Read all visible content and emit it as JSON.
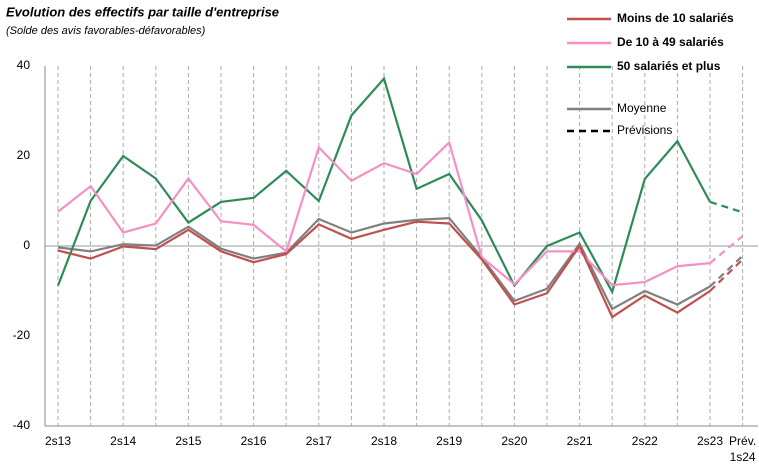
{
  "chart_data": {
    "type": "line",
    "title": "Evolution des effectifs par taille d'entreprise",
    "subtitle": "(Solde des avis favorables-défavorables)",
    "categories": [
      "2s13",
      null,
      "2s14",
      null,
      "2s15",
      null,
      "2s16",
      null,
      "2s17",
      null,
      "2s18",
      null,
      "2s19",
      null,
      "2s20",
      null,
      "2s21",
      null,
      "2s22",
      null,
      "2s23",
      "Prév.\n1s24"
    ],
    "series": [
      {
        "name": "Moins de 10 salariés",
        "color": "#c0504d",
        "values": [
          -1,
          -2.8,
          -0.1,
          -0.7,
          3.6,
          -1.2,
          -3.6,
          -1.8,
          4.8,
          1.6,
          3.6,
          5.4,
          5,
          -3,
          -13,
          -10.5,
          0,
          -15.8,
          -11,
          -14.8,
          -10,
          -3
        ]
      },
      {
        "name": "De 10 à 49 salariés",
        "color": "#f590c4",
        "values": [
          7.6,
          13.3,
          3,
          5,
          15,
          5.5,
          4.7,
          -1.2,
          21.9,
          14.5,
          18.4,
          16,
          23,
          -2.5,
          -8.5,
          -1.2,
          -1.2,
          -8.7,
          -8,
          -4.5,
          -3.8,
          2.2
        ]
      },
      {
        "name": "50 salariés et plus",
        "color": "#2e8b57",
        "values": [
          -8.8,
          10,
          20,
          15,
          5.2,
          9.8,
          10.7,
          16.7,
          10,
          29,
          37.2,
          12.7,
          16,
          5.7,
          -8.8,
          0,
          3,
          -10.2,
          14.9,
          23.3,
          9.8,
          7.5
        ]
      },
      {
        "name": "Moyenne",
        "color": "#808080",
        "values": [
          -0.3,
          -1.2,
          0.4,
          0.1,
          4.3,
          -0.6,
          -2.8,
          -1.5,
          6,
          3,
          5,
          5.8,
          6.2,
          -2.5,
          -12.2,
          -9.5,
          0.5,
          -14,
          -10,
          -13,
          -9,
          -2.2
        ]
      }
    ],
    "forecast_label": "Prévisions",
    "forecast_from_index": 20,
    "ylim": [
      -40,
      40
    ],
    "yticks": [
      -40,
      -20,
      0,
      20,
      40
    ],
    "grid": true
  }
}
